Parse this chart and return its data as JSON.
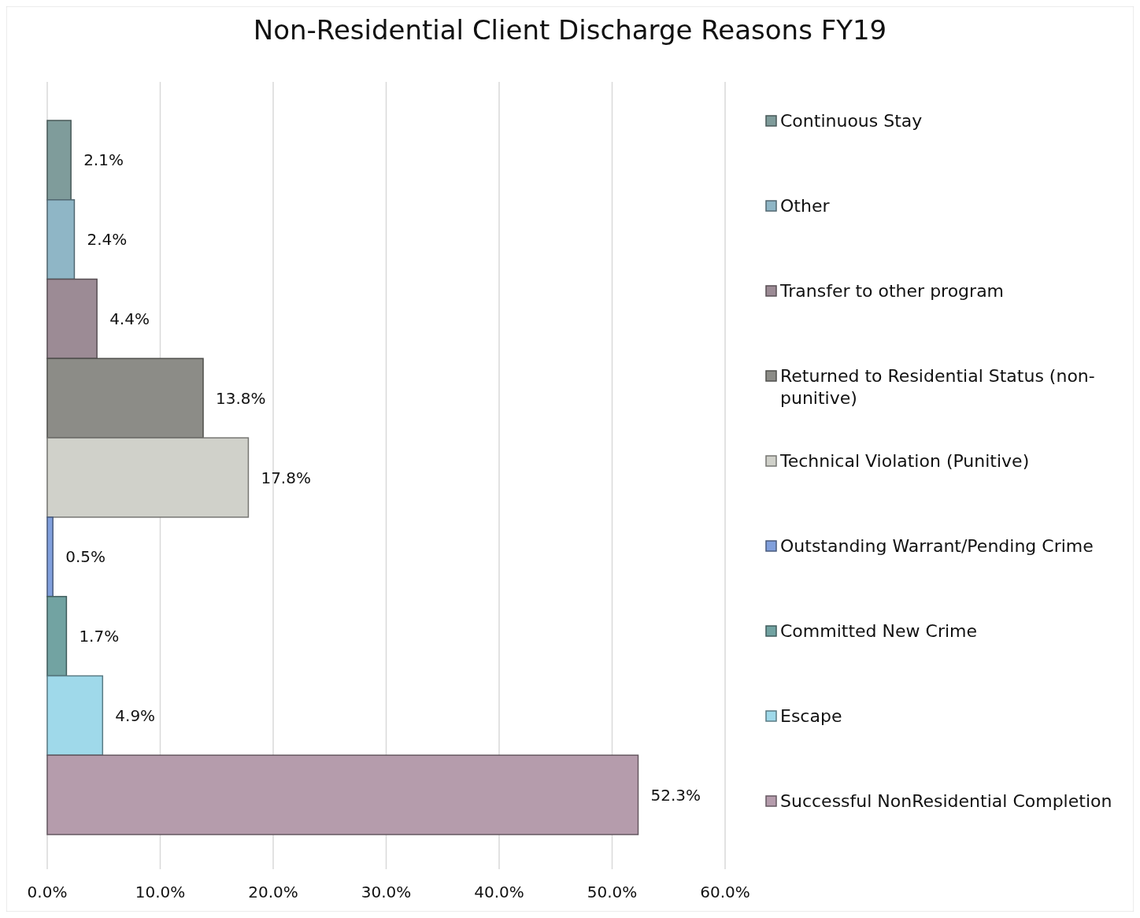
{
  "chart_data": {
    "type": "bar",
    "orientation": "horizontal",
    "title": "Non-Residential Client Discharge Reasons FY19",
    "categories": [
      null
    ],
    "series": [
      {
        "name": "Continuous Stay",
        "color": "#7f9c9b",
        "values": [
          2.1
        ],
        "value_labels": [
          "2.1%"
        ]
      },
      {
        "name": "Other",
        "color": "#8fb6c6",
        "values": [
          2.4
        ],
        "value_labels": [
          "2.4%"
        ]
      },
      {
        "name": "Transfer to other program",
        "color": "#9c8b95",
        "values": [
          4.4
        ],
        "value_labels": [
          "4.4%"
        ]
      },
      {
        "name": "Returned to Residential Status (non-punitive)",
        "color": "#8c8c87",
        "values": [
          13.8
        ],
        "value_labels": [
          "13.8%"
        ]
      },
      {
        "name": "Technical Violation (Punitive)",
        "color": "#d0d1ca",
        "values": [
          17.8
        ],
        "value_labels": [
          "17.8%"
        ]
      },
      {
        "name": "Outstanding Warrant/Pending Crime",
        "color": "#809fdc",
        "values": [
          0.5
        ],
        "value_labels": [
          "0.5%"
        ]
      },
      {
        "name": "Committed New Crime",
        "color": "#72a3a2",
        "values": [
          1.7
        ],
        "value_labels": [
          "1.7%"
        ]
      },
      {
        "name": "Escape",
        "color": "#9fd9ea",
        "values": [
          4.9
        ],
        "value_labels": [
          "4.9%"
        ]
      },
      {
        "name": "Successful NonResidential Completion",
        "color": "#b59cac",
        "values": [
          52.3
        ],
        "value_labels": [
          "52.3%"
        ]
      }
    ],
    "xlim": [
      0,
      60
    ],
    "xticks": [
      {
        "value": 0,
        "label": "0.0%"
      },
      {
        "value": 10,
        "label": "10.0%"
      },
      {
        "value": 20,
        "label": "20.0%"
      },
      {
        "value": 30,
        "label": "30.0%"
      },
      {
        "value": 40,
        "label": "40.0%"
      },
      {
        "value": 50,
        "label": "50.0%"
      },
      {
        "value": 60,
        "label": "60.0%"
      }
    ],
    "grid": "x",
    "legend": "right"
  }
}
